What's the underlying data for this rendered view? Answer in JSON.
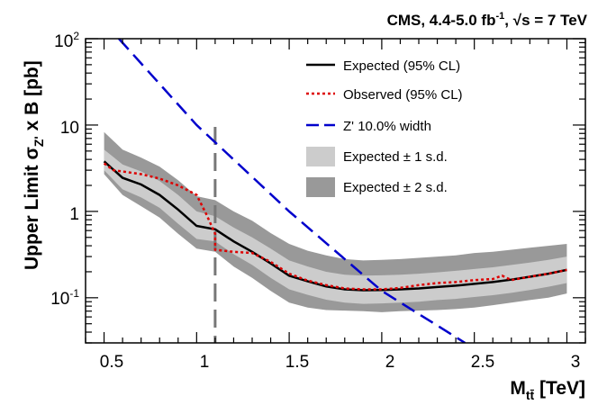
{
  "chart_data": {
    "type": "line",
    "header": {
      "experiment": "CMS, 4.4-5.0 fb",
      "exponent": "-1",
      "sep": ", ",
      "sqrt_symbol": "√",
      "energy": "s = 7 TeV"
    },
    "xlabel": {
      "main": "M",
      "sub": "tt̄",
      "unit": " [TeV]"
    },
    "ylabel": {
      "prefix": "Upper Limit σ",
      "sub": "Z'",
      "suffix": " x B [pb]"
    },
    "xlim": [
      0.4,
      3.1
    ],
    "ylim": [
      0.03,
      100
    ],
    "yscale": "log",
    "x_ticks": [
      {
        "value": 0.5,
        "label": "0.5"
      },
      {
        "value": 1.0,
        "label": "1"
      },
      {
        "value": 1.5,
        "label": "1.5"
      },
      {
        "value": 2.0,
        "label": "2"
      },
      {
        "value": 2.5,
        "label": "2.5"
      },
      {
        "value": 3.0,
        "label": "3"
      }
    ],
    "y_ticks": [
      {
        "value": 0.1,
        "base": "10",
        "exp": "-1"
      },
      {
        "value": 1,
        "base": "1",
        "exp": ""
      },
      {
        "value": 10,
        "base": "10",
        "exp": ""
      },
      {
        "value": 100,
        "base": "10",
        "exp": "2"
      }
    ],
    "legend": [
      {
        "key": "expected",
        "label": "Expected (95% CL)"
      },
      {
        "key": "observed",
        "label": "Observed (95% CL)"
      },
      {
        "key": "zprime",
        "label": "Z' 10.0% width"
      },
      {
        "key": "band1",
        "label": "Expected ± 1 s.d."
      },
      {
        "key": "band2",
        "label": "Expected ± 2 s.d."
      }
    ],
    "colors": {
      "expected": "#000000",
      "observed": "#dd0000",
      "zprime": "#0000cc",
      "band1": "#cccccc",
      "band2": "#999999",
      "divider": "#777777"
    },
    "divider_x": 1.1,
    "expected": {
      "x": [
        0.5,
        0.6,
        0.7,
        0.8,
        0.9,
        1.0,
        1.1,
        1.2,
        1.3,
        1.4,
        1.5,
        1.6,
        1.7,
        1.8,
        1.9,
        2.0,
        2.1,
        2.2,
        2.3,
        2.4,
        2.5,
        2.6,
        2.7,
        2.8,
        2.9,
        3.0
      ],
      "y": [
        3.8,
        2.45,
        2.05,
        1.55,
        1.05,
        0.68,
        0.62,
        0.45,
        0.34,
        0.25,
        0.18,
        0.155,
        0.135,
        0.125,
        0.122,
        0.123,
        0.125,
        0.128,
        0.133,
        0.138,
        0.145,
        0.152,
        0.162,
        0.175,
        0.19,
        0.21
      ]
    },
    "observed": {
      "x": [
        0.5,
        0.55,
        0.6,
        0.7,
        0.8,
        0.9,
        1.0,
        1.05,
        1.1,
        1.1,
        1.2,
        1.3,
        1.4,
        1.5,
        1.6,
        1.7,
        1.8,
        1.9,
        2.0,
        2.1,
        2.2,
        2.3,
        2.4,
        2.5,
        2.6,
        2.65,
        2.7,
        2.8,
        2.9,
        3.0
      ],
      "y": [
        3.6,
        3.0,
        2.9,
        2.7,
        2.4,
        2.0,
        1.55,
        0.95,
        0.55,
        0.36,
        0.34,
        0.33,
        0.26,
        0.19,
        0.158,
        0.14,
        0.128,
        0.125,
        0.125,
        0.13,
        0.14,
        0.148,
        0.152,
        0.16,
        0.165,
        0.18,
        0.16,
        0.175,
        0.19,
        0.21
      ]
    },
    "band1": {
      "x": [
        0.5,
        0.6,
        0.7,
        0.8,
        0.9,
        1.0,
        1.1,
        1.2,
        1.3,
        1.4,
        1.5,
        1.6,
        1.7,
        1.8,
        1.9,
        2.0,
        2.1,
        2.2,
        2.3,
        2.4,
        2.5,
        2.6,
        2.7,
        2.8,
        2.9,
        3.0
      ],
      "hi": [
        5.2,
        3.5,
        2.9,
        2.25,
        1.55,
        1.0,
        0.88,
        0.65,
        0.5,
        0.37,
        0.27,
        0.23,
        0.2,
        0.185,
        0.18,
        0.182,
        0.185,
        0.19,
        0.197,
        0.205,
        0.215,
        0.225,
        0.24,
        0.255,
        0.275,
        0.3
      ],
      "lo": [
        3.0,
        1.8,
        1.45,
        1.1,
        0.72,
        0.48,
        0.45,
        0.32,
        0.24,
        0.17,
        0.125,
        0.108,
        0.095,
        0.088,
        0.085,
        0.086,
        0.088,
        0.09,
        0.094,
        0.097,
        0.102,
        0.107,
        0.114,
        0.123,
        0.134,
        0.148
      ]
    },
    "band2": {
      "x": [
        0.5,
        0.6,
        0.7,
        0.8,
        0.9,
        1.0,
        1.1,
        1.2,
        1.3,
        1.4,
        1.5,
        1.6,
        1.7,
        1.8,
        1.9,
        2.0,
        2.1,
        2.2,
        2.3,
        2.4,
        2.5,
        2.6,
        2.7,
        2.8,
        2.9,
        3.0
      ],
      "hi": [
        8.3,
        5.2,
        4.2,
        3.3,
        2.3,
        1.5,
        1.35,
        1.0,
        0.78,
        0.56,
        0.42,
        0.35,
        0.31,
        0.28,
        0.27,
        0.275,
        0.28,
        0.29,
        0.3,
        0.31,
        0.33,
        0.34,
        0.36,
        0.38,
        0.4,
        0.42
      ],
      "lo": [
        2.7,
        1.55,
        1.15,
        0.85,
        0.55,
        0.37,
        0.34,
        0.23,
        0.17,
        0.12,
        0.088,
        0.077,
        0.072,
        0.071,
        0.07,
        0.068,
        0.07,
        0.071,
        0.072,
        0.074,
        0.077,
        0.082,
        0.088,
        0.094,
        0.1,
        0.112
      ]
    },
    "zprime": {
      "x": [
        0.58,
        1.0,
        1.5,
        2.0,
        2.45
      ],
      "y": [
        100,
        10,
        1.0,
        0.12,
        0.03
      ]
    }
  }
}
